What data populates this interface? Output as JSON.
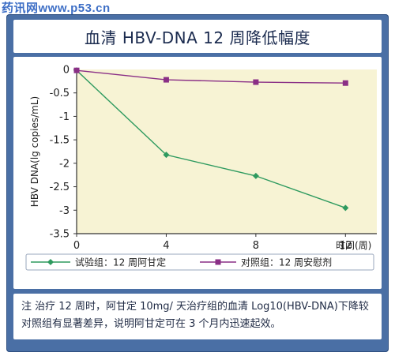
{
  "watermark": "药讯网www.p53.cn",
  "title": "血清 HBV-DNA 12 周降低幅度",
  "note": "注 治疗 12 周时，阿甘定 10mg/ 天治疗组的血清 Log10(HBV-DNA)下降较对照组有显著差异，说明阿甘定可在 3 个月内迅速起效。",
  "chart_data": {
    "type": "line",
    "title": "血清 HBV-DNA 12 周降低幅度",
    "xlabel": "时间(周)",
    "ylabel": "HBV DNA(lg copies/mL)",
    "x": [
      0,
      4,
      8,
      12
    ],
    "x_ticks": [
      "0",
      "4",
      "8",
      "12"
    ],
    "y_ticks": [
      "0",
      "-0.5",
      "-1",
      "-1.5",
      "-2",
      "-2.5",
      "-3",
      "-3.5"
    ],
    "xlim": [
      0,
      13.4
    ],
    "ylim": [
      -3.5,
      0
    ],
    "grid": false,
    "legend_position": "bottom",
    "series": [
      {
        "name": "试验组：12 周阿甘定",
        "values": [
          -0.02,
          -1.82,
          -2.27,
          -2.95
        ],
        "color": "#2e9a5f",
        "marker": "diamond"
      },
      {
        "name": "对照组：12 周安慰剂",
        "values": [
          -0.02,
          -0.22,
          -0.27,
          -0.29
        ],
        "color": "#8a2f86",
        "marker": "square"
      }
    ],
    "colors": {
      "plot_bg": "#f7f3d4",
      "frame": "#4a6fa5"
    }
  }
}
